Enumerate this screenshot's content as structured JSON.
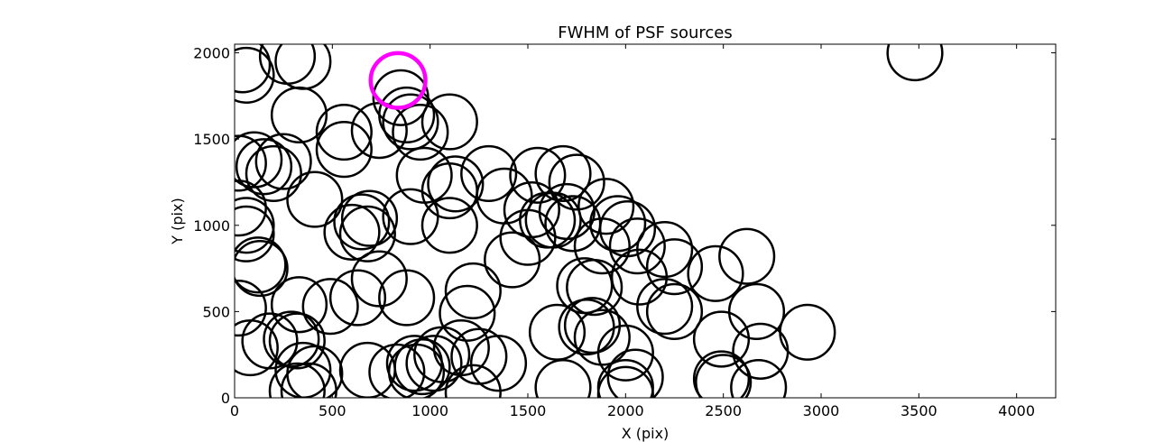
{
  "chart_data": {
    "type": "scatter",
    "title": "FWHM of PSF sources",
    "xlabel": "X (pix)",
    "ylabel": "Y (pix)",
    "xlim": [
      0,
      4200
    ],
    "ylim": [
      0,
      2050
    ],
    "xticks": [
      0,
      500,
      1000,
      1500,
      2000,
      2500,
      3000,
      3500,
      4000
    ],
    "yticks": [
      0,
      500,
      1000,
      1500,
      2000
    ],
    "grid": false,
    "marker_radius_pix": 140,
    "colors": {
      "normal": "#000000",
      "highlight": "#ff00ff"
    },
    "highlight": {
      "x": 836,
      "y": 1840
    },
    "series": [
      {
        "points": [
          [
            40,
            1930
          ],
          [
            60,
            1870
          ],
          [
            270,
            1980
          ],
          [
            350,
            1950
          ],
          [
            850,
            1740
          ],
          [
            880,
            1640
          ],
          [
            900,
            1600
          ],
          [
            950,
            1540
          ],
          [
            1100,
            1600
          ],
          [
            330,
            1640
          ],
          [
            560,
            1540
          ],
          [
            560,
            1440
          ],
          [
            740,
            1550
          ],
          [
            20,
            1360
          ],
          [
            100,
            1380
          ],
          [
            150,
            1340
          ],
          [
            200,
            1300
          ],
          [
            250,
            1370
          ],
          [
            970,
            1290
          ],
          [
            1100,
            1200
          ],
          [
            1130,
            1240
          ],
          [
            1300,
            1300
          ],
          [
            1380,
            1170
          ],
          [
            1550,
            1290
          ],
          [
            1680,
            1300
          ],
          [
            1750,
            1250
          ],
          [
            20,
            1100
          ],
          [
            60,
            1000
          ],
          [
            60,
            950
          ],
          [
            410,
            1150
          ],
          [
            600,
            960
          ],
          [
            650,
            1020
          ],
          [
            680,
            950
          ],
          [
            690,
            1040
          ],
          [
            900,
            1050
          ],
          [
            1100,
            1000
          ],
          [
            1520,
            1090
          ],
          [
            1600,
            1030
          ],
          [
            1630,
            1030
          ],
          [
            1700,
            1080
          ],
          [
            1730,
            1010
          ],
          [
            1900,
            1110
          ],
          [
            1960,
            1010
          ],
          [
            2010,
            980
          ],
          [
            1880,
            880
          ],
          [
            2060,
            880
          ],
          [
            2200,
            860
          ],
          [
            2250,
            760
          ],
          [
            2460,
            720
          ],
          [
            2620,
            820
          ],
          [
            1500,
            930
          ],
          [
            1420,
            800
          ],
          [
            120,
            770
          ],
          [
            130,
            750
          ],
          [
            740,
            690
          ],
          [
            880,
            580
          ],
          [
            630,
            580
          ],
          [
            490,
            530
          ],
          [
            330,
            540
          ],
          [
            1220,
            620
          ],
          [
            1190,
            490
          ],
          [
            20,
            520
          ],
          [
            80,
            290
          ],
          [
            180,
            330
          ],
          [
            290,
            340
          ],
          [
            320,
            330
          ],
          [
            350,
            160
          ],
          [
            410,
            140
          ],
          [
            380,
            40
          ],
          [
            320,
            40
          ],
          [
            680,
            160
          ],
          [
            830,
            150
          ],
          [
            920,
            200
          ],
          [
            930,
            150
          ],
          [
            960,
            180
          ],
          [
            1020,
            200
          ],
          [
            1060,
            250
          ],
          [
            1160,
            290
          ],
          [
            1250,
            240
          ],
          [
            1350,
            200
          ],
          [
            1220,
            30
          ],
          [
            1650,
            380
          ],
          [
            1800,
            410
          ],
          [
            1830,
            420
          ],
          [
            1790,
            650
          ],
          [
            1840,
            640
          ],
          [
            1880,
            350
          ],
          [
            2000,
            260
          ],
          [
            2050,
            120
          ],
          [
            2000,
            60
          ],
          [
            2000,
            20
          ],
          [
            2070,
            700
          ],
          [
            2200,
            530
          ],
          [
            2250,
            500
          ],
          [
            2490,
            340
          ],
          [
            2490,
            110
          ],
          [
            2500,
            90
          ],
          [
            2670,
            500
          ],
          [
            2690,
            270
          ],
          [
            2680,
            60
          ],
          [
            2930,
            380
          ],
          [
            1680,
            60
          ],
          [
            3480,
            2000
          ]
        ]
      }
    ]
  }
}
